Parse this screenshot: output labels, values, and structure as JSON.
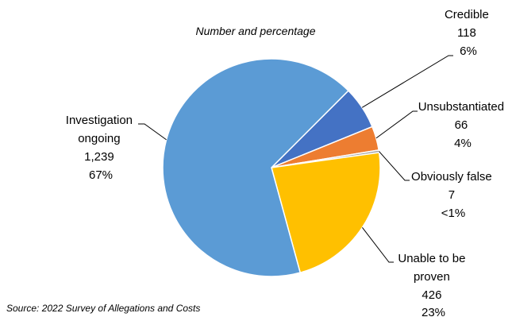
{
  "chart_data": {
    "type": "pie",
    "subtitle": "Number and percentage",
    "source": "Source: 2022 Survey of Allegations and Costs",
    "slices": [
      {
        "label": "Credible",
        "value": 118,
        "value_text": "118",
        "percent_text": "6%",
        "color": "#4472C4"
      },
      {
        "label": "Unsubstantiated",
        "value": 66,
        "value_text": "66",
        "percent_text": "4%",
        "color": "#ED7D31"
      },
      {
        "label": "Obviously false",
        "value": 7,
        "value_text": "7",
        "percent_text": "<1%",
        "color": "#A5A5A5"
      },
      {
        "label": "Unable to be proven",
        "label_lines": [
          "Unable to be",
          "proven"
        ],
        "value": 426,
        "value_text": "426",
        "percent_text": "23%",
        "color": "#FFC000"
      },
      {
        "label": "Investigation ongoing",
        "label_lines": [
          "Investigation",
          "ongoing"
        ],
        "value": 1239,
        "value_text": "1,239",
        "percent_text": "67%",
        "color": "#5B9BD5"
      }
    ]
  }
}
